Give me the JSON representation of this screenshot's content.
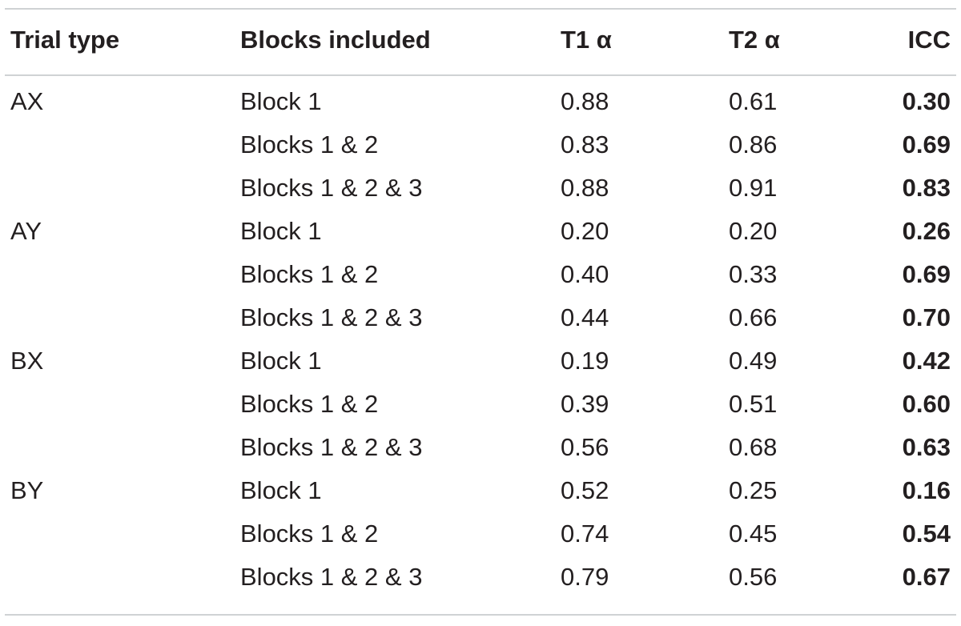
{
  "table": {
    "headers": [
      "Trial type",
      "Blocks included",
      "T1 α",
      "T2 α",
      "ICC"
    ],
    "rows": [
      {
        "trial_type": "AX",
        "blocks": "Block 1",
        "t1": "0.88",
        "t2": "0.61",
        "icc": "0.30"
      },
      {
        "trial_type": "",
        "blocks": "Blocks 1 & 2",
        "t1": "0.83",
        "t2": "0.86",
        "icc": "0.69"
      },
      {
        "trial_type": "",
        "blocks": "Blocks 1 & 2 & 3",
        "t1": "0.88",
        "t2": "0.91",
        "icc": "0.83"
      },
      {
        "trial_type": "AY",
        "blocks": "Block 1",
        "t1": "0.20",
        "t2": "0.20",
        "icc": "0.26"
      },
      {
        "trial_type": "",
        "blocks": "Blocks 1 & 2",
        "t1": "0.40",
        "t2": "0.33",
        "icc": "0.69"
      },
      {
        "trial_type": "",
        "blocks": "Blocks 1 & 2 & 3",
        "t1": "0.44",
        "t2": "0.66",
        "icc": "0.70"
      },
      {
        "trial_type": "BX",
        "blocks": "Block 1",
        "t1": "0.19",
        "t2": "0.49",
        "icc": "0.42"
      },
      {
        "trial_type": "",
        "blocks": "Blocks 1 & 2",
        "t1": "0.39",
        "t2": "0.51",
        "icc": "0.60"
      },
      {
        "trial_type": "",
        "blocks": "Blocks 1 & 2 & 3",
        "t1": "0.56",
        "t2": "0.68",
        "icc": "0.63"
      },
      {
        "trial_type": "BY",
        "blocks": "Block 1",
        "t1": "0.52",
        "t2": "0.25",
        "icc": "0.16"
      },
      {
        "trial_type": "",
        "blocks": "Blocks 1 & 2",
        "t1": "0.74",
        "t2": "0.45",
        "icc": "0.54"
      },
      {
        "trial_type": "",
        "blocks": "Blocks 1 & 2 & 3",
        "t1": "0.79",
        "t2": "0.56",
        "icc": "0.67"
      }
    ]
  }
}
